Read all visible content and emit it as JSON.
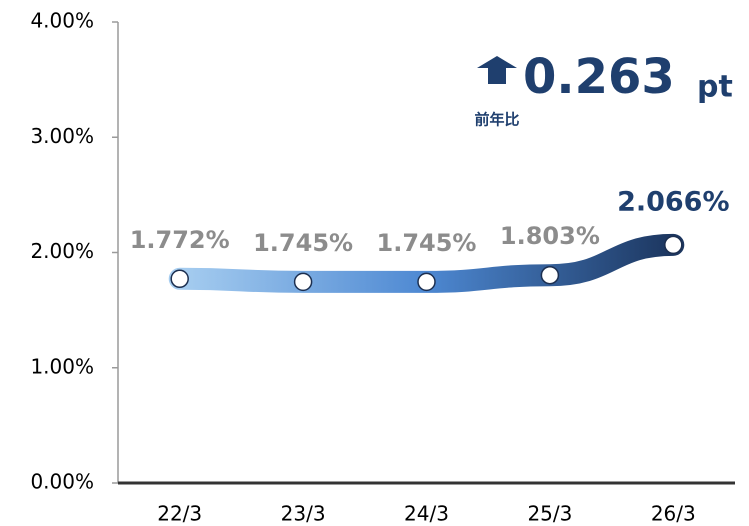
{
  "chart_data": {
    "type": "line",
    "categories": [
      "22/3",
      "23/3",
      "24/3",
      "25/3",
      "26/3"
    ],
    "series": [
      {
        "values": [
          1.772,
          1.745,
          1.745,
          1.803,
          2.066
        ],
        "value_labels": [
          "1.772%",
          "1.745%",
          "1.745%",
          "1.803%",
          "2.066%"
        ],
        "gradient": [
          "#a6cdf0",
          "#4d88d2",
          "#1c365f"
        ],
        "label_color": "#8c8c8c",
        "highlight_color": "#1f3f6e"
      }
    ],
    "ylim": [
      0,
      4
    ],
    "yticks": [
      {
        "value": 0,
        "label": "0.00%"
      },
      {
        "value": 1,
        "label": "1.00%"
      },
      {
        "value": 2,
        "label": "2.00%"
      },
      {
        "value": 3,
        "label": "3.00%"
      },
      {
        "value": 4,
        "label": "4.00%"
      }
    ],
    "grid": false,
    "annotation": {
      "value": "0.263",
      "unit": "pt",
      "label": "前年比"
    }
  }
}
